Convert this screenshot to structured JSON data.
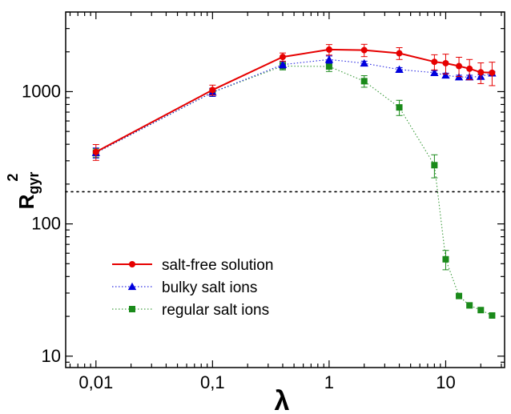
{
  "chart_data": {
    "type": "scatter",
    "xscale": "log",
    "yscale": "log",
    "xlim": [
      0.0055,
      32
    ],
    "ylim": [
      8.2,
      4000
    ],
    "xlabel": "λ",
    "ylabel": "R",
    "ylabel_sub": "gyr",
    "ylabel_sup": "2",
    "x_ticks": [
      {
        "value": 0.01,
        "label": "0,01"
      },
      {
        "value": 0.1,
        "label": "0,1"
      },
      {
        "value": 1,
        "label": "1"
      },
      {
        "value": 10,
        "label": "10"
      }
    ],
    "y_ticks": [
      {
        "value": 10,
        "label": "10"
      },
      {
        "value": 100,
        "label": "100"
      },
      {
        "value": 1000,
        "label": "1000"
      }
    ],
    "reference_line": {
      "y": 175,
      "style": "dotted"
    },
    "legend_position": "center-left",
    "series": [
      {
        "name": "salt-free solution",
        "color": "#e60000",
        "marker": "circle",
        "line": "solid",
        "points": [
          {
            "x": 0.01,
            "y": 350,
            "err": 48
          },
          {
            "x": 0.1,
            "y": 1030,
            "err": 90
          },
          {
            "x": 0.4,
            "y": 1830,
            "err": 130
          },
          {
            "x": 1,
            "y": 2080,
            "err": 190
          },
          {
            "x": 2,
            "y": 2060,
            "err": 220
          },
          {
            "x": 4,
            "y": 1950,
            "err": 200
          },
          {
            "x": 8,
            "y": 1680,
            "err": 220
          },
          {
            "x": 10,
            "y": 1640,
            "err": 280
          },
          {
            "x": 13,
            "y": 1560,
            "err": 260
          },
          {
            "x": 16,
            "y": 1490,
            "err": 260
          },
          {
            "x": 20,
            "y": 1400,
            "err": 250
          },
          {
            "x": 25,
            "y": 1390,
            "err": 280
          }
        ]
      },
      {
        "name": "bulky salt ions",
        "color": "#0000dd",
        "marker": "triangle",
        "line": "dotted",
        "points": [
          {
            "x": 0.01,
            "y": 345,
            "err": 30
          },
          {
            "x": 0.1,
            "y": 990,
            "err": 70
          },
          {
            "x": 0.4,
            "y": 1600,
            "err": 90
          },
          {
            "x": 1,
            "y": 1750,
            "err": 110
          },
          {
            "x": 2,
            "y": 1640,
            "err": 60
          },
          {
            "x": 4,
            "y": 1470,
            "err": 50
          },
          {
            "x": 8,
            "y": 1390,
            "err": 50
          },
          {
            "x": 10,
            "y": 1330,
            "err": 50
          },
          {
            "x": 13,
            "y": 1290,
            "err": 40
          },
          {
            "x": 16,
            "y": 1290,
            "err": 40
          },
          {
            "x": 20,
            "y": 1300,
            "err": 40
          },
          {
            "x": 25,
            "y": 1380,
            "err": 40
          }
        ]
      },
      {
        "name": "regular salt ions",
        "color": "#1a8a1a",
        "marker": "square",
        "line": "dotted",
        "points": [
          {
            "x": 0.01,
            "y": 345,
            "err": 25
          },
          {
            "x": 0.1,
            "y": 990,
            "err": 70
          },
          {
            "x": 0.4,
            "y": 1560,
            "err": 100
          },
          {
            "x": 1,
            "y": 1550,
            "err": 130
          },
          {
            "x": 2,
            "y": 1200,
            "err": 120
          },
          {
            "x": 4,
            "y": 760,
            "err": 100
          },
          {
            "x": 8,
            "y": 278,
            "err": 55
          },
          {
            "x": 10,
            "y": 54,
            "err": 9
          },
          {
            "x": 13,
            "y": 28.5,
            "err": 0
          },
          {
            "x": 16,
            "y": 24.2,
            "err": 0
          },
          {
            "x": 20,
            "y": 22.3,
            "err": 0
          },
          {
            "x": 25,
            "y": 20.3,
            "err": 0
          }
        ]
      }
    ]
  }
}
